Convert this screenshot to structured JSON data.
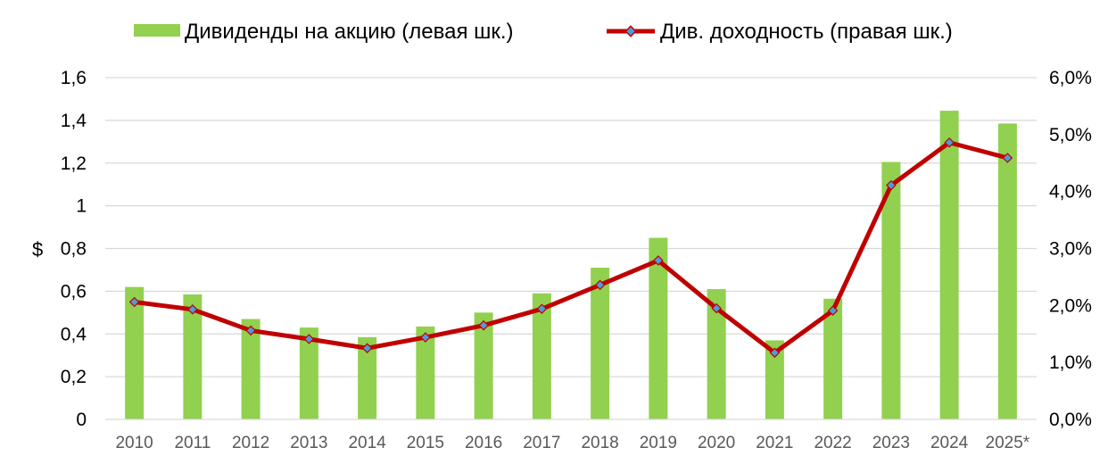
{
  "chart_data": {
    "type": "bar",
    "categories": [
      "2010",
      "2011",
      "2012",
      "2013",
      "2014",
      "2015",
      "2016",
      "2017",
      "2018",
      "2019",
      "2020",
      "2021",
      "2022",
      "2023",
      "2024",
      "2025*"
    ],
    "series": [
      {
        "name": "Дивиденды на акцию (левая шк.)",
        "type": "bar",
        "axis": "left",
        "color": "#92d050",
        "values": [
          0.62,
          0.585,
          0.47,
          0.43,
          0.385,
          0.435,
          0.5,
          0.59,
          0.71,
          0.85,
          0.61,
          0.37,
          0.565,
          1.205,
          1.445,
          1.385
        ]
      },
      {
        "name": "Див. доходность (правая шк.)",
        "type": "line",
        "axis": "right",
        "color": "#c00000",
        "marker_color": "#4f9bd9",
        "values": [
          2.06,
          1.93,
          1.56,
          1.41,
          1.25,
          1.44,
          1.65,
          1.94,
          2.36,
          2.79,
          1.95,
          1.17,
          1.91,
          4.11,
          4.86,
          4.59
        ]
      }
    ],
    "left_axis": {
      "label": "$",
      "ylim": [
        0,
        1.6
      ],
      "ticks": [
        0,
        0.2,
        0.4,
        0.6,
        0.8,
        1.0,
        1.2,
        1.4,
        1.6
      ],
      "tick_labels": [
        "0",
        "0,2",
        "0,4",
        "0,6",
        "0,8",
        "1",
        "1,2",
        "1,4",
        "1,6"
      ]
    },
    "right_axis": {
      "ylim": [
        0,
        6.0
      ],
      "ticks": [
        0,
        1,
        2,
        3,
        4,
        5,
        6
      ],
      "tick_labels": [
        "0,0%",
        "1,0%",
        "2,0%",
        "3,0%",
        "4,0%",
        "5,0%",
        "6,0%"
      ]
    },
    "grid": true,
    "legend_position": "top"
  }
}
